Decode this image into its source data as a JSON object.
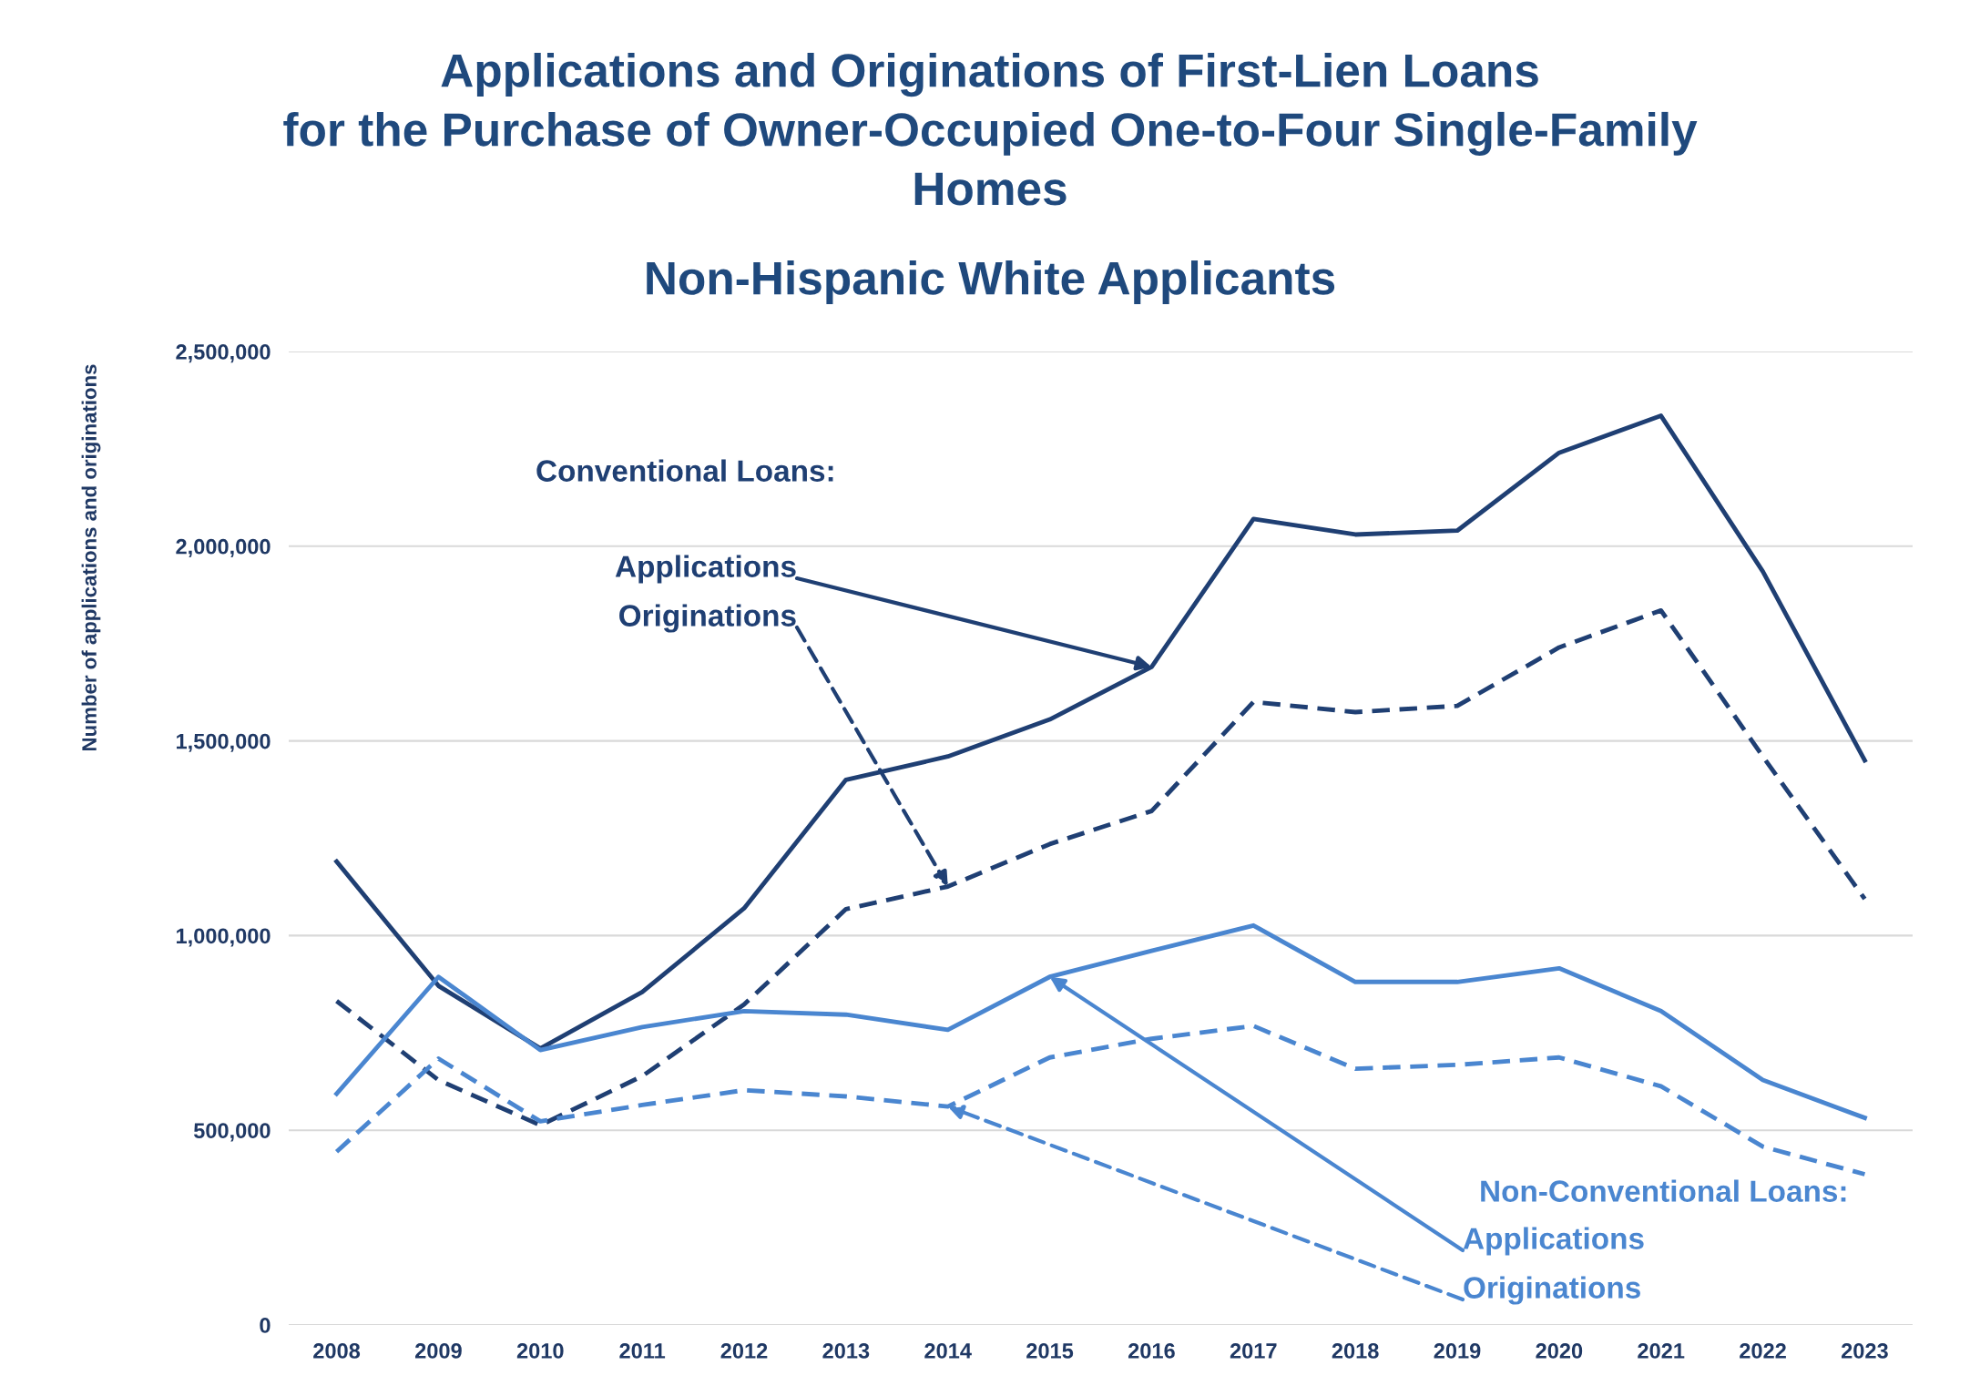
{
  "chart_data": {
    "type": "line",
    "title": "Applications and Originations of First-Lien Loans\nfor the Purchase of Owner-Occupied One-to-Four Single-Family\nHomes",
    "subtitle": "Non-Hispanic White Applicants",
    "ylabel": "Number of applications and originations",
    "categories": [
      "2008",
      "2009",
      "2010",
      "2011",
      "2012",
      "2013",
      "2014",
      "2015",
      "2016",
      "2017",
      "2018",
      "2019",
      "2020",
      "2021",
      "2022",
      "2023"
    ],
    "series": [
      {
        "color": "#1f3f73",
        "line_style": "solid",
        "values": [
          1190000,
          871000,
          710000,
          855000,
          1070000,
          1400000,
          1460000,
          1555000,
          1690000,
          2070000,
          2030000,
          2040000,
          2240000,
          2335000,
          1935000,
          1450000
        ]
      },
      {
        "color": "#1f3f73",
        "line_style": "dashed",
        "values": [
          832000,
          629000,
          513000,
          639000,
          823000,
          1068000,
          1126000,
          1235000,
          1320000,
          1600000,
          1574000,
          1590000,
          1740000,
          1835000,
          1460000,
          1094000
        ]
      },
      {
        "color": "#4a86d0",
        "line_style": "solid",
        "values": [
          594000,
          894000,
          706000,
          765000,
          806000,
          797000,
          758000,
          894000,
          961000,
          1026000,
          881000,
          881000,
          916000,
          806000,
          629000,
          532000
        ]
      },
      {
        "color": "#4a86d0",
        "line_style": "dashed",
        "values": [
          445000,
          684000,
          523000,
          565000,
          603000,
          587000,
          561000,
          687000,
          735000,
          768000,
          658000,
          668000,
          687000,
          613000,
          458000,
          387000
        ]
      }
    ],
    "ylim": [
      0,
      2500000
    ],
    "yticks": [
      {
        "value": 0,
        "label": "0"
      },
      {
        "value": 500000,
        "label": "500,000"
      },
      {
        "value": 1000000,
        "label": "1,000,000"
      },
      {
        "value": 1500000,
        "label": "1,500,000"
      },
      {
        "value": 2000000,
        "label": "2,000,000"
      },
      {
        "value": 2500000,
        "label": "2,500,000"
      }
    ],
    "grid": "y",
    "legend": false,
    "marker": "none",
    "annotations": [
      "Conventional Loans:",
      {
        "text": "Applications",
        "x": "2016",
        "y": 1690000
      },
      {
        "text": "Originations",
        "x": "2014",
        "y": 1126000
      },
      "Non-Conventional Loans:",
      {
        "text": "Applications",
        "x": "2015",
        "y": 894000
      },
      {
        "text": "Originations",
        "x": "2014",
        "y": 561000
      }
    ]
  }
}
